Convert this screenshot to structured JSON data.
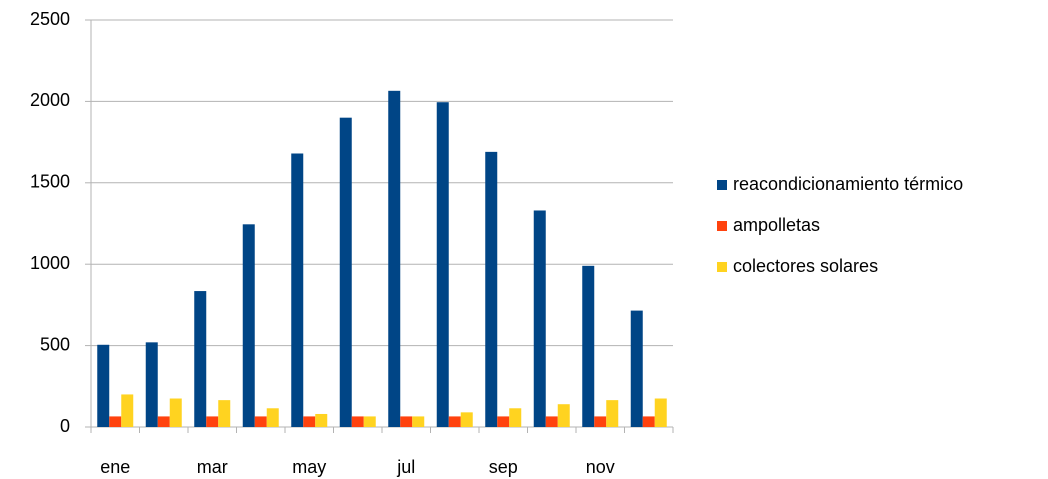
{
  "chart_data": {
    "type": "bar",
    "categories": [
      "ene",
      null,
      "mar",
      null,
      "may",
      null,
      "jul",
      null,
      "sep",
      null,
      "nov",
      null
    ],
    "series": [
      {
        "name": "reacondicionamiento térmico",
        "color": "#004586",
        "values": [
          505,
          520,
          835,
          1245,
          1680,
          1900,
          2065,
          1995,
          1690,
          1330,
          990,
          715
        ]
      },
      {
        "name": "ampolletas",
        "color": "#ff420e",
        "values": [
          65,
          65,
          65,
          65,
          65,
          65,
          65,
          65,
          65,
          65,
          65,
          65
        ]
      },
      {
        "name": "colectores solares",
        "color": "#ffd320",
        "values": [
          200,
          175,
          165,
          115,
          80,
          65,
          65,
          90,
          115,
          140,
          165,
          175
        ]
      }
    ],
    "ylim": [
      0,
      2500
    ],
    "yticks": [
      0,
      500,
      1000,
      1500,
      2000,
      2500
    ],
    "grid": true,
    "legend": "right"
  }
}
